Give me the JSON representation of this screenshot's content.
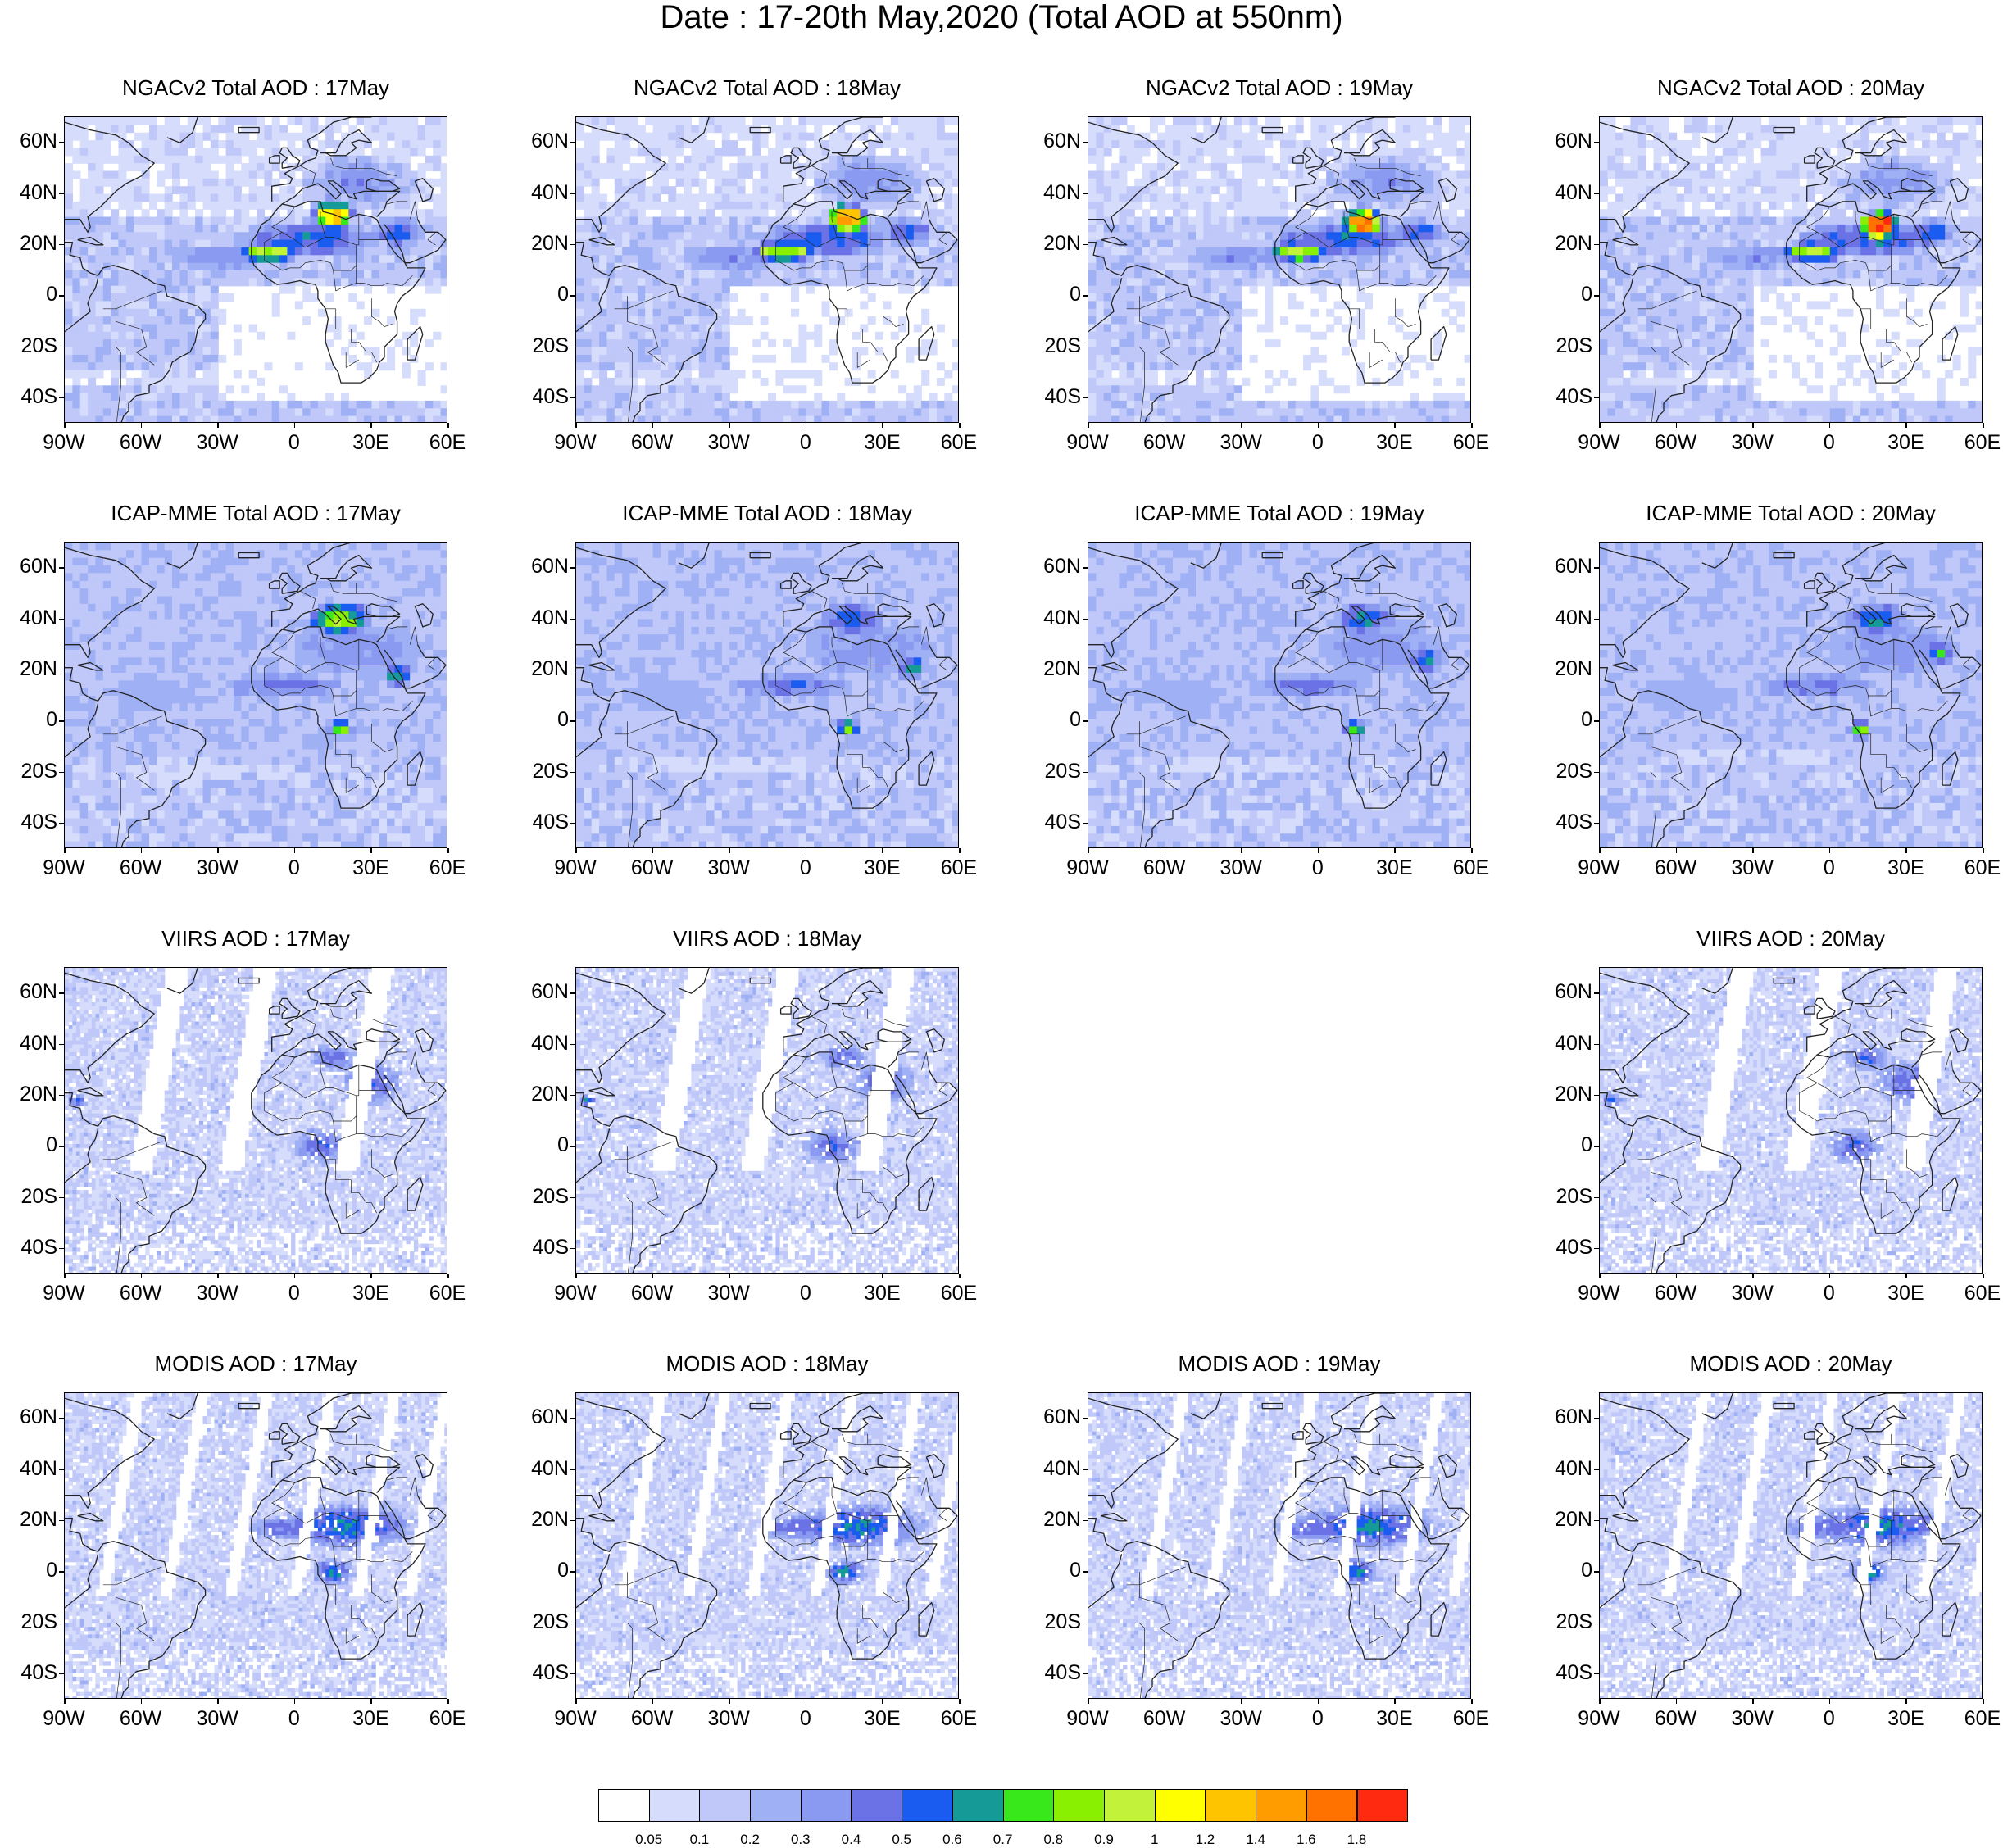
{
  "figure": {
    "title": "Date : 17-20th May,2020 (Total AOD at 550nm)"
  },
  "axes": {
    "lat_labels": [
      "60N",
      "40N",
      "20N",
      "0",
      "20S",
      "40S"
    ],
    "lat_values": [
      60,
      40,
      20,
      0,
      -20,
      -40
    ],
    "lon_labels": [
      "90W",
      "60W",
      "30W",
      "0",
      "30E",
      "60E"
    ],
    "lon_values": [
      -90,
      -60,
      -30,
      0,
      30,
      60
    ],
    "lat_range": [
      -50,
      70
    ],
    "lon_range": [
      -90,
      60
    ]
  },
  "colors": {
    "land_outline": "#222222",
    "levels": [
      "#ffffff",
      "#d6dcfb",
      "#bfc8f8",
      "#9fb0f4",
      "#8a9af0",
      "#6b72e6",
      "#1a5cf0",
      "#159a98",
      "#39e81a",
      "#88f000",
      "#c3f23a",
      "#ffff00",
      "#ffc400",
      "#ff9c00",
      "#ff7200",
      "#ff2a10"
    ]
  },
  "colorbar": {
    "labels": [
      "0.05",
      "0.1",
      "0.2",
      "0.3",
      "0.4",
      "0.5",
      "0.6",
      "0.7",
      "0.8",
      "0.9",
      "1",
      "1.2",
      "1.4",
      "1.6",
      "1.8"
    ]
  },
  "rows": [
    {
      "name": "ngac",
      "panels": [
        {
          "title": "NGACv2 Total AOD : 17May",
          "kind": "model",
          "day": 0
        },
        {
          "title": "NGACv2 Total AOD : 18May",
          "kind": "model",
          "day": 1
        },
        {
          "title": "NGACv2 Total AOD : 19May",
          "kind": "model",
          "day": 2
        },
        {
          "title": "NGACv2 Total AOD : 20May",
          "kind": "model",
          "day": 3
        }
      ]
    },
    {
      "name": "icap",
      "panels": [
        {
          "title": "ICAP-MME Total AOD : 17May",
          "kind": "ensemble",
          "day": 0
        },
        {
          "title": "ICAP-MME Total AOD : 18May",
          "kind": "ensemble",
          "day": 1
        },
        {
          "title": "ICAP-MME Total AOD : 19May",
          "kind": "ensemble",
          "day": 2
        },
        {
          "title": "ICAP-MME Total AOD : 20May",
          "kind": "ensemble",
          "day": 3
        }
      ]
    },
    {
      "name": "viirs",
      "panels": [
        {
          "title": "VIIRS AOD : 17May",
          "kind": "satellite",
          "day": 0
        },
        {
          "title": "VIIRS AOD : 18May",
          "kind": "satellite",
          "day": 1
        },
        null,
        {
          "title": "VIIRS AOD : 20May",
          "kind": "satellite",
          "day": 3
        }
      ]
    },
    {
      "name": "modis",
      "panels": [
        {
          "title": "MODIS AOD : 17May",
          "kind": "satellite2",
          "day": 0
        },
        {
          "title": "MODIS AOD : 18May",
          "kind": "satellite2",
          "day": 1
        },
        {
          "title": "MODIS AOD : 19May",
          "kind": "satellite2",
          "day": 2
        },
        {
          "title": "MODIS AOD : 20May",
          "kind": "satellite2",
          "day": 3
        }
      ]
    }
  ]
}
